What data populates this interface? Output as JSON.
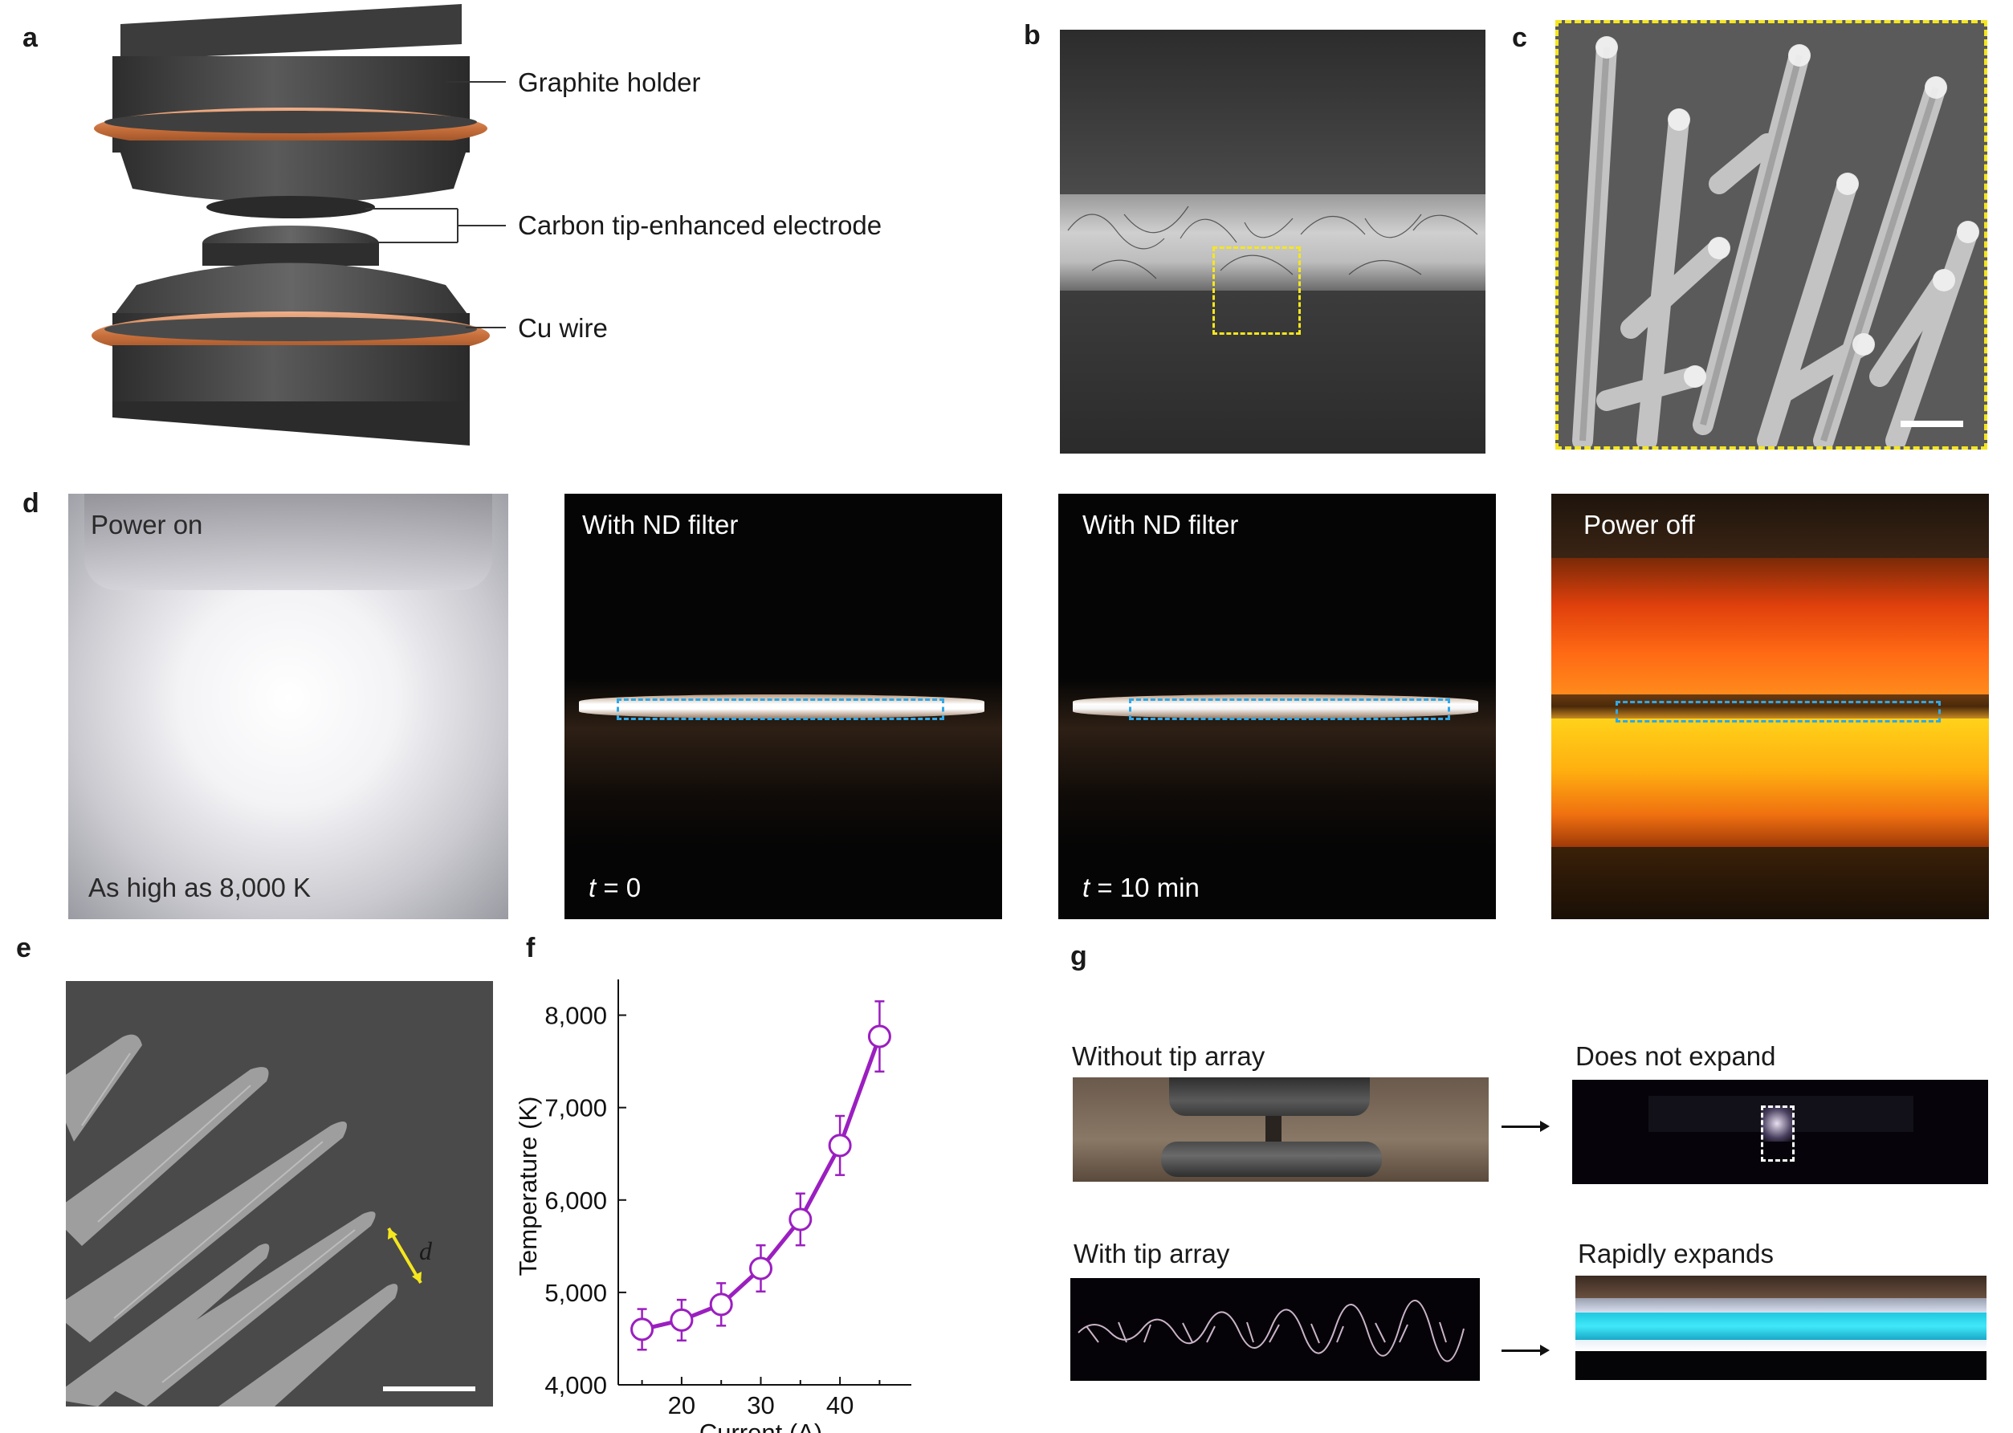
{
  "panel_labels": {
    "a": "a",
    "b": "b",
    "c": "c",
    "d": "d",
    "e": "e",
    "f": "f",
    "g": "g"
  },
  "panel_a": {
    "callouts": [
      "Graphite holder",
      "Carbon tip-enhanced  electrode",
      "Cu wire"
    ]
  },
  "panel_d": {
    "frames": [
      {
        "top": "Power on",
        "bottom": "As high as 8,000 K"
      },
      {
        "top": "With ND filter",
        "bottom_var": "t",
        "bottom_rest": " = 0"
      },
      {
        "top": "With ND filter",
        "bottom_var": "t",
        "bottom_rest": " = 10 min"
      },
      {
        "top": "Power off",
        "bottom": ""
      }
    ]
  },
  "panel_e": {
    "annotation": "d"
  },
  "panel_g": {
    "rows": [
      {
        "left": "Without tip array",
        "right": "Does not expand"
      },
      {
        "left": "With tip array",
        "right": "Rapidly expands"
      }
    ]
  },
  "colors": {
    "accent_purple": "#9b1fc0",
    "dashed_yellow": "#f5e61e",
    "dashed_blue": "#2fa8e8",
    "copper": "#c8703c"
  },
  "chart_data": {
    "type": "line",
    "title": "",
    "xlabel": "Current (A)",
    "ylabel": "Temperature (K)",
    "xlim": [
      12,
      48
    ],
    "ylim": [
      4000,
      8300
    ],
    "xticks": [
      20,
      30,
      40
    ],
    "yticks": [
      4000,
      5000,
      6000,
      7000,
      8000
    ],
    "xtick_labels": [
      "20",
      "30",
      "40"
    ],
    "ytick_labels": [
      "4,000",
      "5,000",
      "6,000",
      "7,000",
      "8,000"
    ],
    "grid": false,
    "series": [
      {
        "x": [
          15,
          20,
          25,
          30,
          35,
          40,
          45
        ],
        "y": [
          4600,
          4700,
          4870,
          5260,
          5790,
          6590,
          7770
        ],
        "err": [
          220,
          220,
          230,
          250,
          280,
          320,
          380
        ],
        "marker": "open-circle"
      }
    ]
  }
}
